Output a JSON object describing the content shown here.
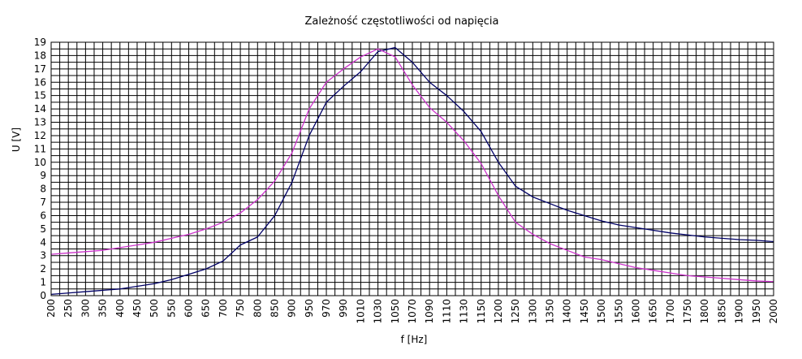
{
  "chart_data": {
    "type": "line",
    "title": "Zależność częstotliwości od napięcia",
    "xlabel": "f [Hz]",
    "ylabel": "U [V]",
    "ylim": [
      0,
      19
    ],
    "grid": true,
    "categories": [
      "200",
      "250",
      "300",
      "350",
      "400",
      "450",
      "500",
      "550",
      "600",
      "650",
      "700",
      "750",
      "800",
      "850",
      "900",
      "950",
      "970",
      "990",
      "1010",
      "1030",
      "1050",
      "1070",
      "1090",
      "1110",
      "1130",
      "1150",
      "1200",
      "1250",
      "1300",
      "1350",
      "1400",
      "1450",
      "1500",
      "1550",
      "1600",
      "1650",
      "1700",
      "1750",
      "1800",
      "1850",
      "1900",
      "1950",
      "2000"
    ],
    "series": [
      {
        "color": "#000066",
        "values": [
          0.1,
          0.2,
          0.3,
          0.4,
          0.5,
          0.7,
          0.9,
          1.2,
          1.6,
          2.0,
          2.6,
          3.8,
          4.4,
          6.0,
          8.5,
          12.0,
          14.5,
          15.7,
          16.8,
          18.3,
          18.6,
          17.5,
          16.0,
          15.0,
          13.8,
          12.3,
          10.0,
          8.2,
          7.4,
          6.9,
          6.4,
          6.0,
          5.6,
          5.3,
          5.1,
          4.9,
          4.7,
          4.55,
          4.4,
          4.3,
          4.2,
          4.15,
          4.05
        ]
      },
      {
        "color": "#cc33cc",
        "values": [
          3.1,
          3.2,
          3.3,
          3.4,
          3.6,
          3.8,
          4.0,
          4.3,
          4.6,
          5.0,
          5.5,
          6.2,
          7.2,
          8.6,
          10.7,
          14.0,
          16.0,
          17.0,
          17.9,
          18.5,
          17.9,
          15.8,
          14.1,
          13.0,
          11.6,
          9.9,
          7.5,
          5.5,
          4.6,
          3.9,
          3.4,
          2.9,
          2.7,
          2.4,
          2.1,
          1.9,
          1.7,
          1.5,
          1.4,
          1.3,
          1.2,
          1.1,
          1.05
        ]
      }
    ]
  }
}
